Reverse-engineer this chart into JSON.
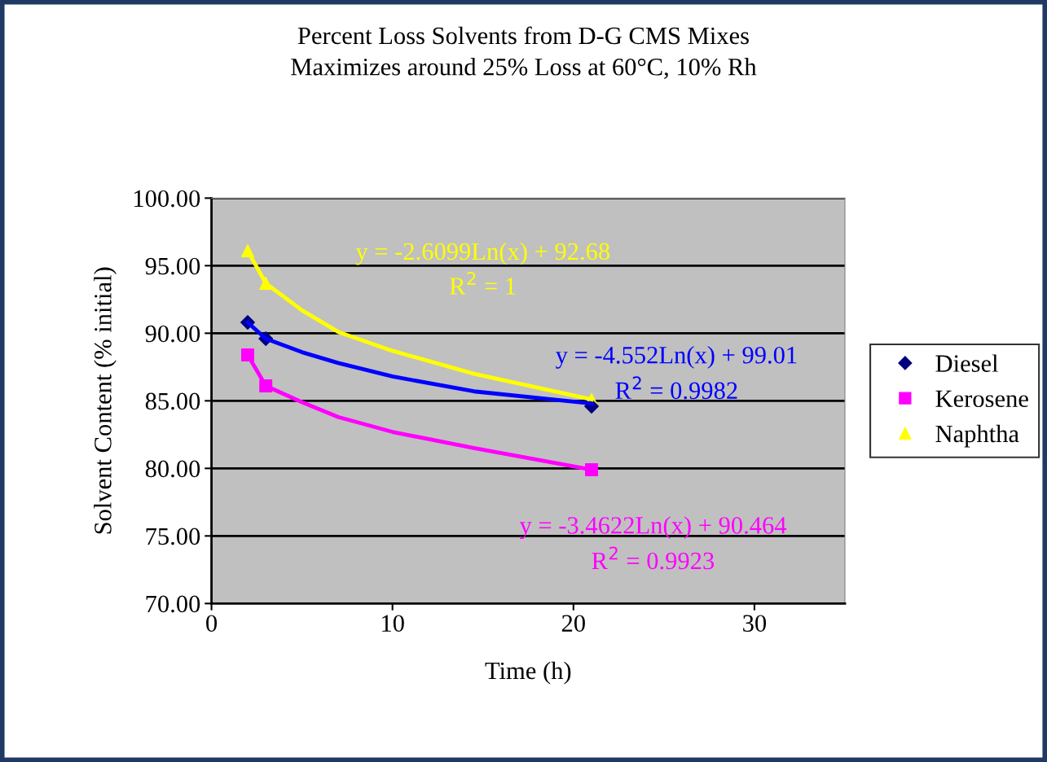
{
  "chart_data": {
    "type": "scatter",
    "title": "Percent Loss Solvents from D-G CMS Mixes\nMaximizes around 25% Loss at 60°C, 10% Rh",
    "xlabel": "Time (h)",
    "ylabel": "Solvent Content (% initial)",
    "xlim": [
      0,
      35
    ],
    "xticks": [
      0,
      10,
      20,
      30
    ],
    "ylim": [
      70,
      100
    ],
    "yticks": [
      {
        "value": 70,
        "label": "70.00"
      },
      {
        "value": 75,
        "label": "75.00"
      },
      {
        "value": 80,
        "label": "80.00"
      },
      {
        "value": 85,
        "label": "85.00"
      },
      {
        "value": 90,
        "label": "90.00"
      },
      {
        "value": 95,
        "label": "95.00"
      },
      {
        "value": 100,
        "label": "100.00"
      }
    ],
    "grid": "y",
    "legend": "right",
    "series": [
      {
        "type": "line",
        "marker": "none",
        "name": "y = -4.552Ln(x) + 99.01\nR$^{2}$ = 0.9982",
        "color": "#0000ff",
        "x": [
          2,
          3,
          5,
          7,
          10,
          14.5,
          21
        ],
        "values": [
          90.8,
          89.6,
          88.6,
          87.8,
          86.8,
          85.7,
          84.8
        ]
      },
      {
        "type": "line",
        "marker": "none",
        "name": "y = -3.4622Ln(x) + 90.464\nR$^{2}$ = 0.9923",
        "color": "#ff00ff",
        "x": [
          2,
          3,
          5,
          7,
          10,
          14.5,
          21
        ],
        "values": [
          88.4,
          86.1,
          84.9,
          83.8,
          82.7,
          81.5,
          79.9
        ]
      },
      {
        "type": "line",
        "marker": "none",
        "name": "y = -2.6099Ln(x) + 92.68\nR$^{2}$ = 1",
        "color": "#ffff00",
        "x": [
          2,
          3,
          5,
          7,
          10,
          14.5,
          21
        ],
        "values": [
          96.1,
          93.7,
          91.7,
          90.1,
          88.7,
          87.0,
          85.1
        ]
      },
      {
        "name": "Diesel",
        "marker": "diamond",
        "color": "#000080",
        "x": [
          2,
          3,
          21
        ],
        "values": [
          90.8,
          89.6,
          84.6
        ]
      },
      {
        "name": "Kerosene",
        "marker": "square",
        "color": "#ff00ff",
        "x": [
          2,
          3,
          21
        ],
        "values": [
          88.4,
          86.1,
          79.9
        ]
      },
      {
        "name": "Naphtha",
        "marker": "triangle",
        "color": "#ffff00",
        "x": [
          2,
          3,
          21
        ],
        "values": [
          96.1,
          93.7,
          85.1
        ]
      }
    ]
  }
}
